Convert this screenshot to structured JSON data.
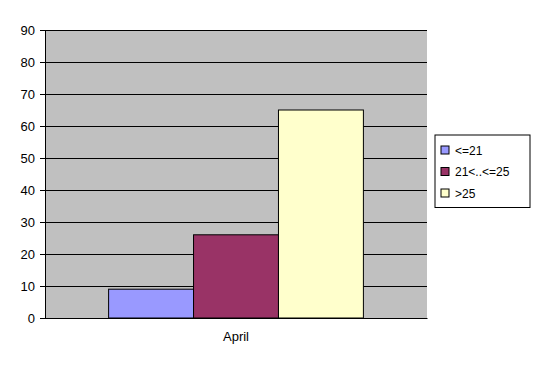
{
  "chart_data": {
    "type": "bar",
    "categories": [
      "April"
    ],
    "series": [
      {
        "name": "<=21",
        "color": "#9999ff",
        "values": [
          9
        ]
      },
      {
        "name": "21<..<=25",
        "color": "#993366",
        "values": [
          26
        ]
      },
      {
        "name": ">25",
        "color": "#ffffcc",
        "values": [
          65
        ]
      }
    ],
    "ylim": [
      0,
      90
    ],
    "yticks": [
      0,
      10,
      20,
      30,
      40,
      50,
      60,
      70,
      80,
      90
    ],
    "grid": true,
    "legend": "right"
  }
}
